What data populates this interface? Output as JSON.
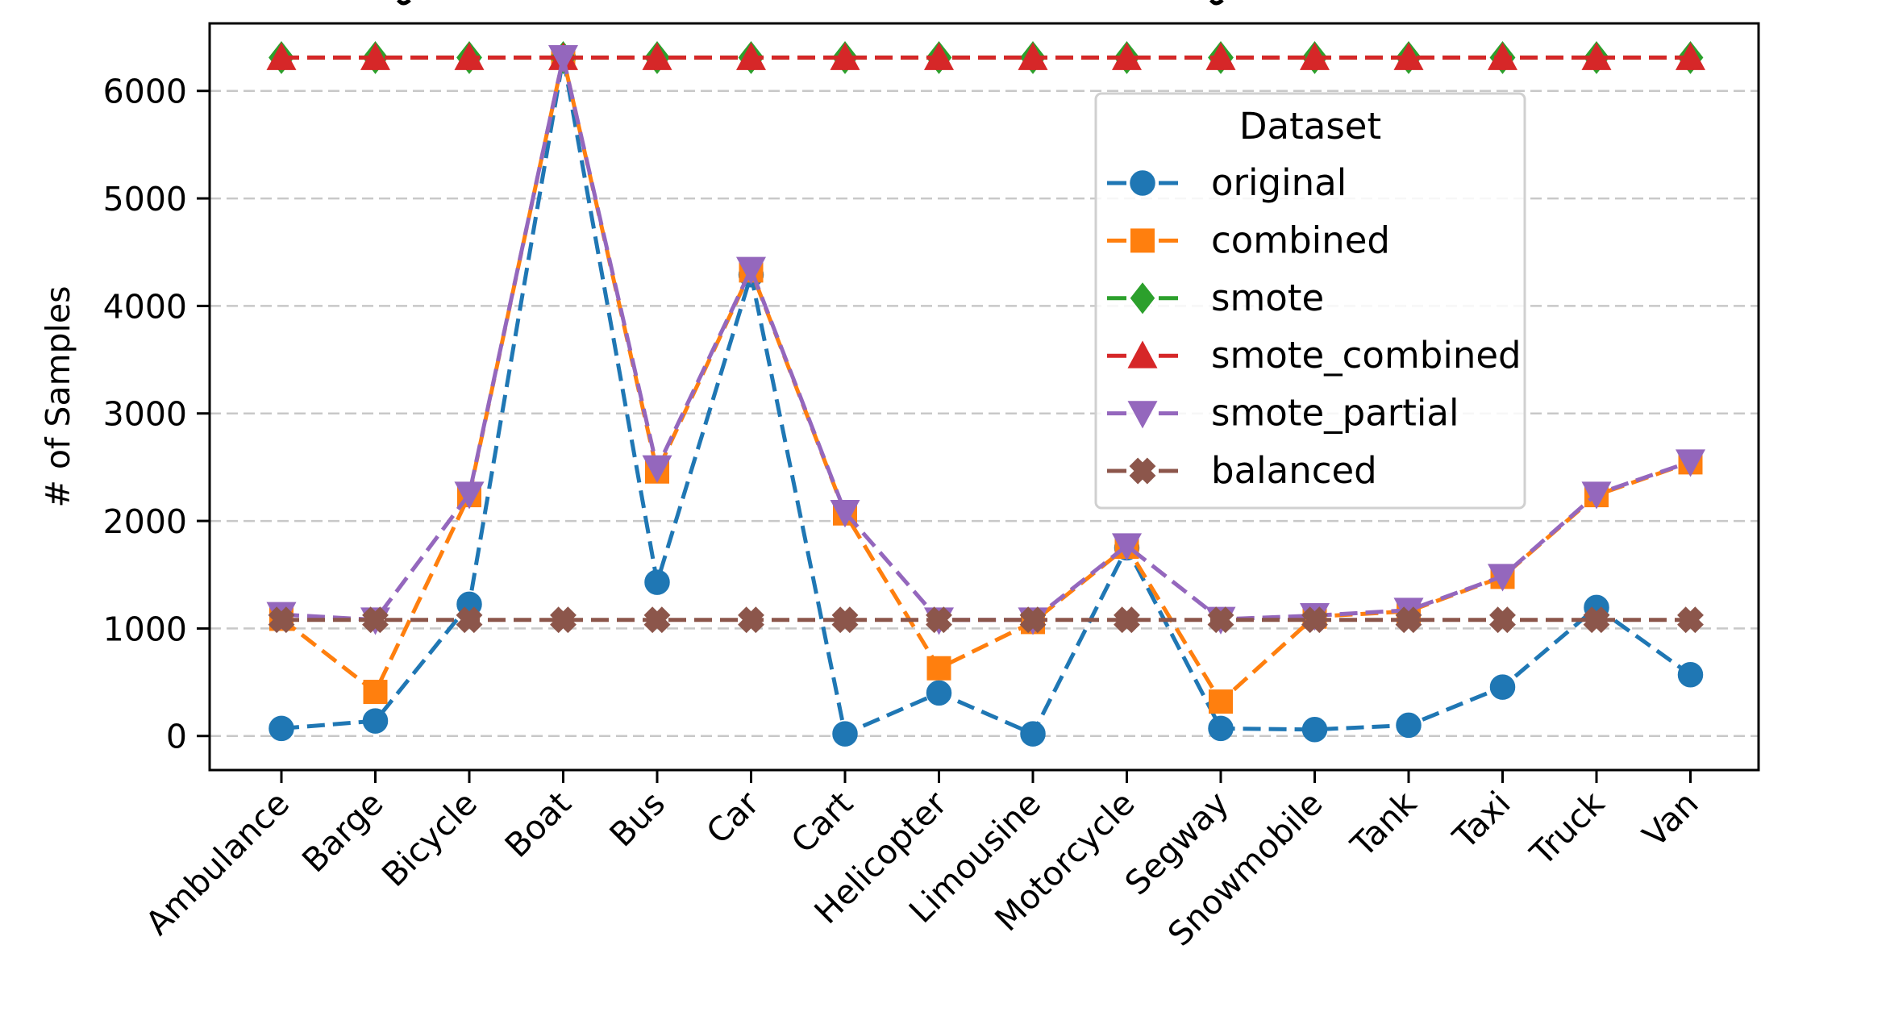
{
  "chart_data": {
    "type": "line",
    "title": "",
    "xlabel": "",
    "ylabel": "# of Samples",
    "categories": [
      "Ambulance",
      "Barge",
      "Bicycle",
      "Boat",
      "Bus",
      "Car",
      "Cart",
      "Helicopter",
      "Limousine",
      "Motorcycle",
      "Segway",
      "Snowmobile",
      "Tank",
      "Taxi",
      "Truck",
      "Van"
    ],
    "yticks": [
      0,
      1000,
      2000,
      3000,
      4000,
      5000,
      6000
    ],
    "ylim": [
      -317,
      6628
    ],
    "grid": "y-dashed",
    "legend": {
      "title": "Dataset",
      "placement": "upper-right-center"
    },
    "series": [
      {
        "name": "original",
        "color": "#1f77b4",
        "marker": "circle",
        "linestyle": "dashed",
        "values": [
          70,
          140,
          1225,
          6310,
          1430,
          4290,
          20,
          400,
          20,
          1750,
          70,
          60,
          100,
          455,
          1195,
          570
        ]
      },
      {
        "name": "combined",
        "color": "#ff7f0e",
        "marker": "square",
        "linestyle": "dashed",
        "values": [
          1090,
          410,
          2240,
          6310,
          2460,
          4330,
          2070,
          630,
          1060,
          1760,
          320,
          1110,
          1160,
          1480,
          2240,
          2545
        ]
      },
      {
        "name": "smote",
        "color": "#2ca02c",
        "marker": "diamond",
        "linestyle": "dashed",
        "values": [
          6310,
          6310,
          6310,
          6310,
          6310,
          6310,
          6310,
          6310,
          6310,
          6310,
          6310,
          6310,
          6310,
          6310,
          6310,
          6310
        ]
      },
      {
        "name": "smote_combined",
        "color": "#d62728",
        "marker": "triangle-up",
        "linestyle": "dashed",
        "values": [
          6310,
          6310,
          6310,
          6310,
          6310,
          6310,
          6310,
          6310,
          6310,
          6310,
          6310,
          6310,
          6310,
          6310,
          6310,
          6310
        ]
      },
      {
        "name": "smote_partial",
        "color": "#9467bd",
        "marker": "triangle-down",
        "linestyle": "dashed",
        "values": [
          1130,
          1080,
          2250,
          6310,
          2495,
          4340,
          2080,
          1080,
          1080,
          1770,
          1085,
          1120,
          1170,
          1485,
          2250,
          2550
        ]
      },
      {
        "name": "balanced",
        "color": "#8c564b",
        "marker": "x-filled",
        "linestyle": "dashed",
        "values": [
          1080,
          1080,
          1080,
          1080,
          1080,
          1080,
          1080,
          1080,
          1080,
          1080,
          1080,
          1080,
          1080,
          1080,
          1080,
          1080
        ]
      }
    ]
  }
}
